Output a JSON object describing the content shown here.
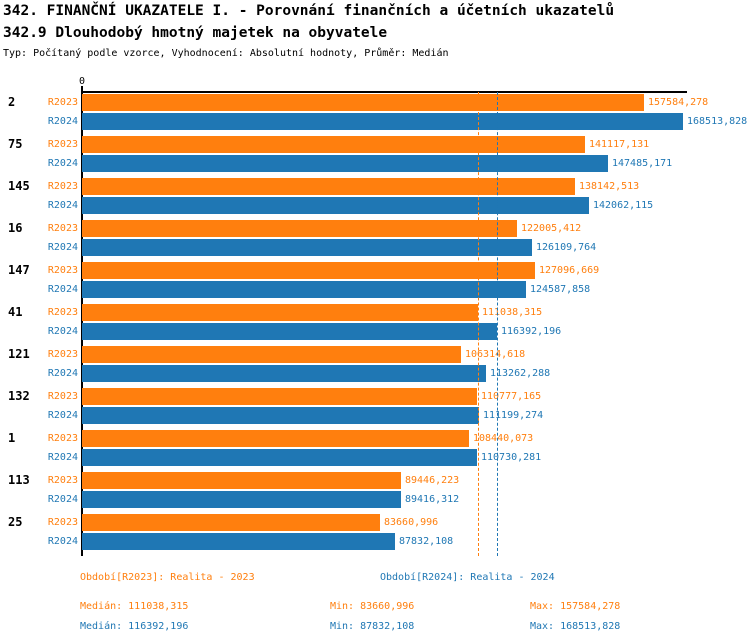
{
  "header": {
    "title": "342. FINANČNÍ UKAZATELE I. - Porovnání finančních a účetních ukazatelů",
    "subtitle": "342.9 Dlouhodobý hmotný majetek na obyvatele",
    "meta": "Typ: Počítaný podle vzorce, Vyhodnocení: Absolutní hodnoty, Průměr: Medián"
  },
  "chart_data": {
    "type": "bar",
    "orientation": "horizontal",
    "title": "342.9 Dlouhodobý hmotný majetek na obyvatele",
    "axis": {
      "zero_label": "0",
      "max": 168513.828,
      "grid": false
    },
    "categories": [
      "2",
      "75",
      "145",
      "16",
      "147",
      "41",
      "121",
      "132",
      "1",
      "113",
      "25"
    ],
    "series": [
      {
        "name": "R2023",
        "color": "#ff7f0e",
        "values": [
          157584.278,
          141117.131,
          138142.513,
          122005.412,
          127096.669,
          111038.315,
          106314.618,
          110777.165,
          108440.073,
          89446.223,
          83660.996
        ]
      },
      {
        "name": "R2024",
        "color": "#1f77b4",
        "values": [
          168513.828,
          147485.171,
          142062.115,
          126109.764,
          124587.858,
          116392.196,
          113262.288,
          111199.274,
          110730.281,
          89416.312,
          87832.108
        ]
      }
    ],
    "median_lines": [
      {
        "series": "R2023",
        "value": 111038.315,
        "color": "#ff7f0e"
      },
      {
        "series": "R2024",
        "value": 116392.196,
        "color": "#1f77b4"
      }
    ]
  },
  "legend": {
    "series": [
      {
        "color": "#ff7f0e",
        "label": "Období[R2023]: Realita - 2023",
        "median": "Medián: 111038,315",
        "min": "Min: 83660,996",
        "max": "Max: 157584,278"
      },
      {
        "color": "#1f77b4",
        "label": "Období[R2024]: Realita - 2024",
        "median": "Medián: 116392,196",
        "min": "Min: 87832,108",
        "max": "Max: 168513,828"
      }
    ]
  }
}
